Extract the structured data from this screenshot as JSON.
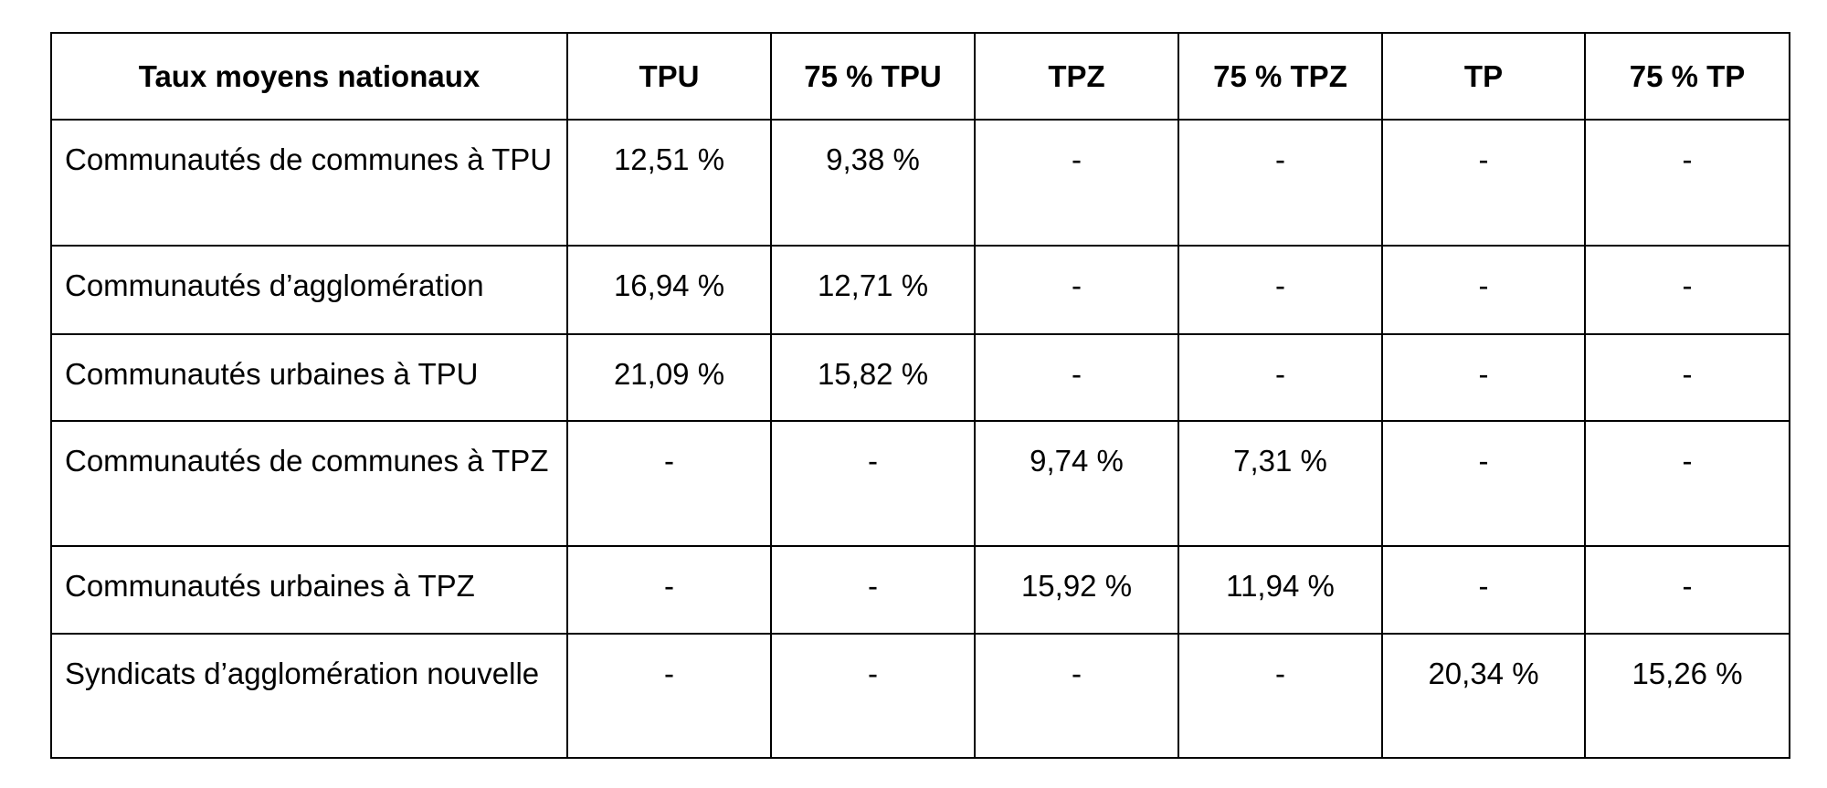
{
  "table": {
    "header": [
      "Taux moyens nationaux",
      "TPU",
      "75 % TPU",
      "TPZ",
      "75 % TPZ",
      "TP",
      "75 % TP"
    ],
    "rows": [
      [
        "Communautés de communes à TPU",
        "12,51 %",
        "9,38 %",
        "-",
        "-",
        "-",
        "-"
      ],
      [
        "Communautés d’agglomération",
        "16,94 %",
        "12,71 %",
        "-",
        "-",
        "-",
        "-"
      ],
      [
        "Communautés urbaines à TPU",
        "21,09 %",
        "15,82 %",
        "-",
        "-",
        "-",
        "-"
      ],
      [
        "Communautés de communes à TPZ",
        "-",
        "-",
        "9,74 %",
        "7,31 %",
        "-",
        "-"
      ],
      [
        "Communautés urbaines à TPZ",
        "-",
        "-",
        "15,92 %",
        "11,94 %",
        "-",
        "-"
      ],
      [
        "Syndicats d’agglomération nouvelle",
        "-",
        "-",
        "-",
        "-",
        "20,34 %",
        "15,26 %"
      ]
    ]
  }
}
